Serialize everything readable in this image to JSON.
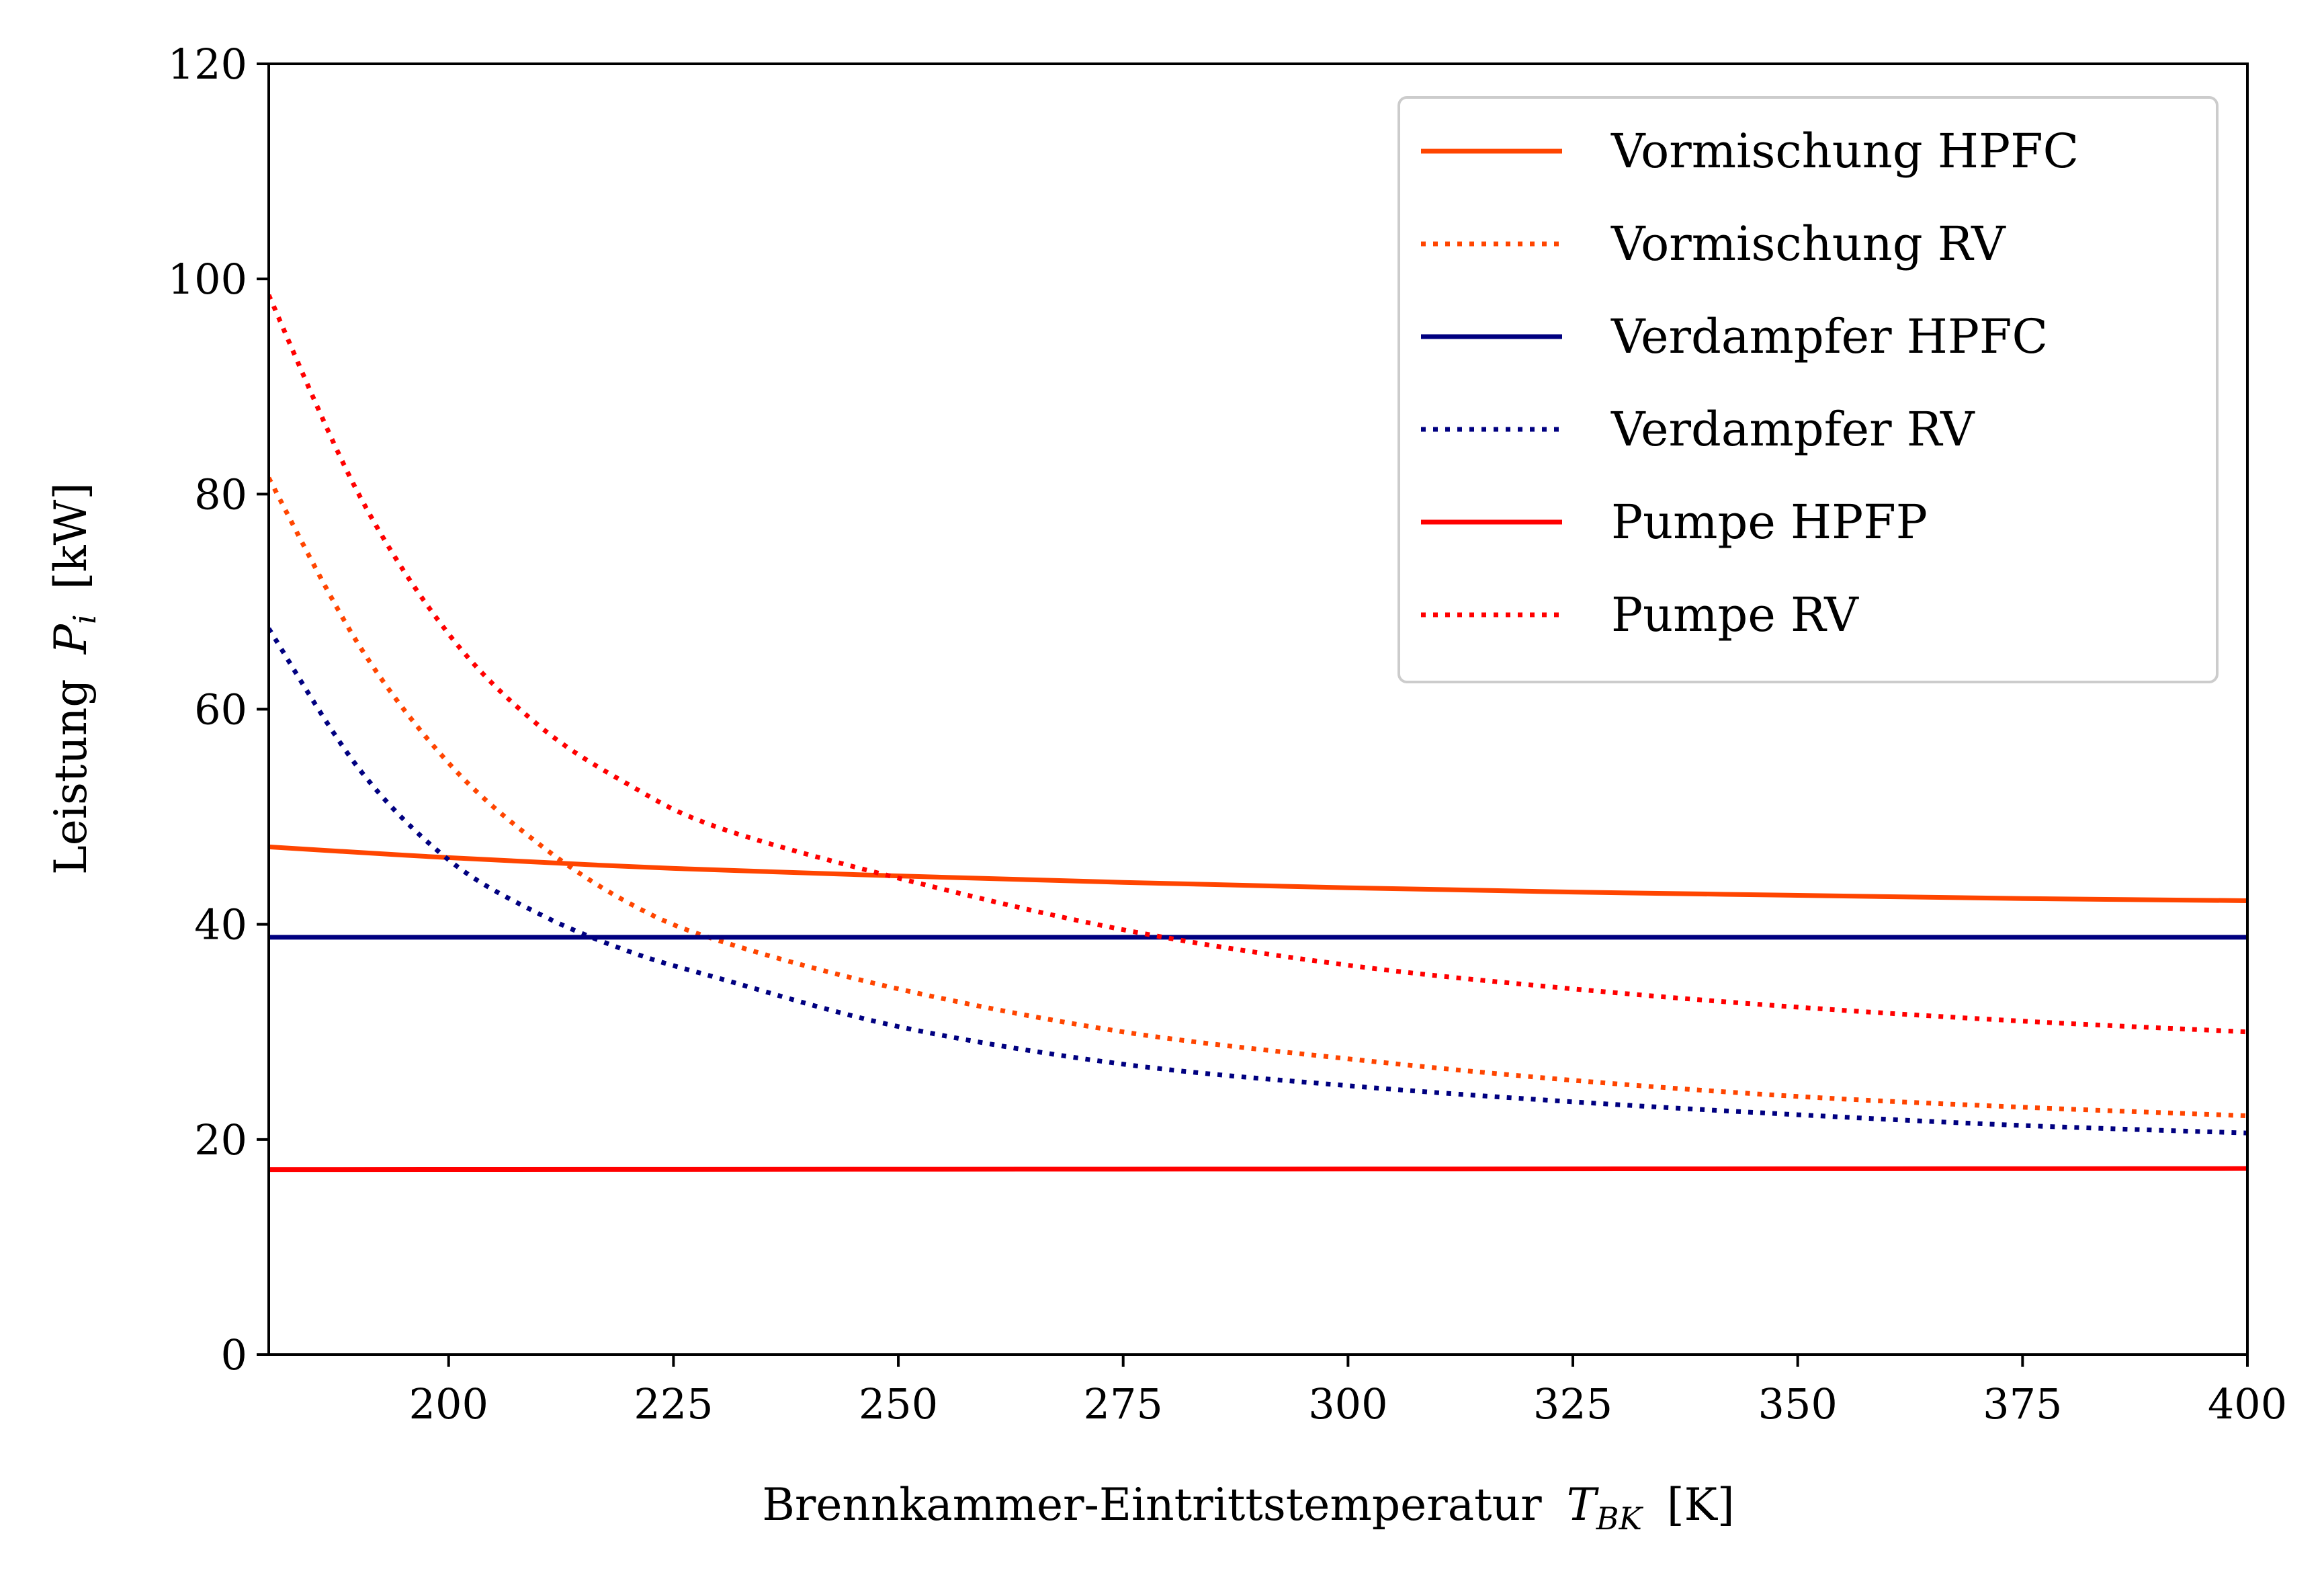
{
  "chart_data": {
    "type": "line",
    "xlabel": "Brennkammer-Eintrittstemperatur",
    "xlabel_symbol": "T",
    "xlabel_sub": "BK",
    "xlabel_unit": "[K]",
    "ylabel": "Leistung",
    "ylabel_symbol": "P",
    "ylabel_sub": "i",
    "ylabel_unit": "[kW]",
    "xlim": [
      180,
      400
    ],
    "ylim": [
      0,
      120
    ],
    "xticks": [
      200,
      225,
      250,
      275,
      300,
      325,
      350,
      375,
      400
    ],
    "yticks": [
      0,
      20,
      40,
      60,
      80,
      100,
      120
    ],
    "grid": false,
    "legend_position": "top-right",
    "series": [
      {
        "name": "Vormischung HPFC",
        "color": "#ff4500",
        "style": "solid",
        "x": [
          180,
          200,
          225,
          250,
          275,
          300,
          325,
          350,
          375,
          400
        ],
        "y": [
          47.2,
          46.2,
          45.2,
          44.5,
          43.9,
          43.4,
          43.0,
          42.7,
          42.4,
          42.2
        ]
      },
      {
        "name": "Vormischung RV",
        "color": "#ff4500",
        "style": "dotted",
        "x": [
          180,
          190,
          200,
          210,
          220,
          230,
          250,
          275,
          300,
          325,
          350,
          375,
          400
        ],
        "y": [
          81.5,
          66.0,
          55.0,
          47.5,
          42.0,
          38.5,
          34.0,
          30.0,
          27.5,
          25.5,
          24.0,
          23.0,
          22.2
        ]
      },
      {
        "name": "Verdampfer HPFC",
        "color": "#000080",
        "style": "solid",
        "x": [
          180,
          400
        ],
        "y": [
          38.8,
          38.8
        ]
      },
      {
        "name": "Verdampfer RV",
        "color": "#000080",
        "style": "dotted",
        "x": [
          180,
          190,
          200,
          210,
          220,
          230,
          250,
          275,
          300,
          325,
          350,
          375,
          400
        ],
        "y": [
          67.5,
          54.5,
          46.0,
          41.0,
          37.5,
          35.0,
          30.5,
          27.0,
          25.0,
          23.5,
          22.3,
          21.3,
          20.6
        ]
      },
      {
        "name": "Pumpe HPFP",
        "color": "#ff0000",
        "style": "solid",
        "x": [
          180,
          400
        ],
        "y": [
          17.2,
          17.3
        ]
      },
      {
        "name": "Pumpe RV",
        "color": "#ff0000",
        "style": "dotted",
        "x": [
          180,
          190,
          200,
          210,
          220,
          230,
          250,
          275,
          300,
          325,
          350,
          375,
          400
        ],
        "y": [
          98.5,
          80.0,
          67.0,
          58.5,
          53.0,
          49.0,
          44.3,
          39.5,
          36.2,
          34.0,
          32.3,
          31.0,
          30.0
        ]
      }
    ]
  }
}
